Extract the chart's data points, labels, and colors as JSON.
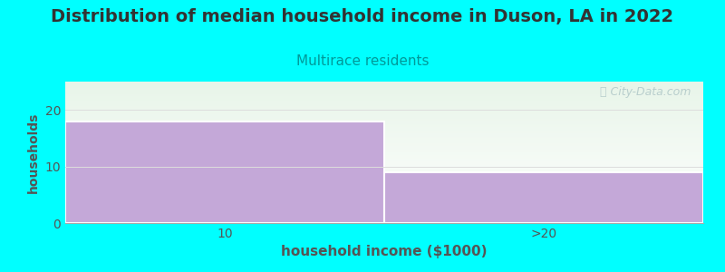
{
  "title": "Distribution of median household income in Duson, LA in 2022",
  "subtitle": "Multirace residents",
  "xlabel": "household income ($1000)",
  "ylabel": "households",
  "background_color": "#00ffff",
  "plot_bg_top": "#e8f5e9",
  "plot_bg_bottom": "#ffffff",
  "bar_color": "#c4a8d8",
  "bar_edge_color": "#ffffff",
  "categories": [
    "10",
    ">20"
  ],
  "values": [
    18,
    9
  ],
  "ylim": [
    0,
    25
  ],
  "yticks": [
    0,
    10,
    20
  ],
  "title_fontsize": 14,
  "subtitle_fontsize": 11,
  "subtitle_color": "#009999",
  "axis_label_color": "#555555",
  "tick_color": "#555555",
  "watermark_text": "ⓘ City-Data.com",
  "watermark_color": "#b0c8c8",
  "xlabel_fontsize": 11,
  "ylabel_fontsize": 10,
  "tick_fontsize": 10
}
